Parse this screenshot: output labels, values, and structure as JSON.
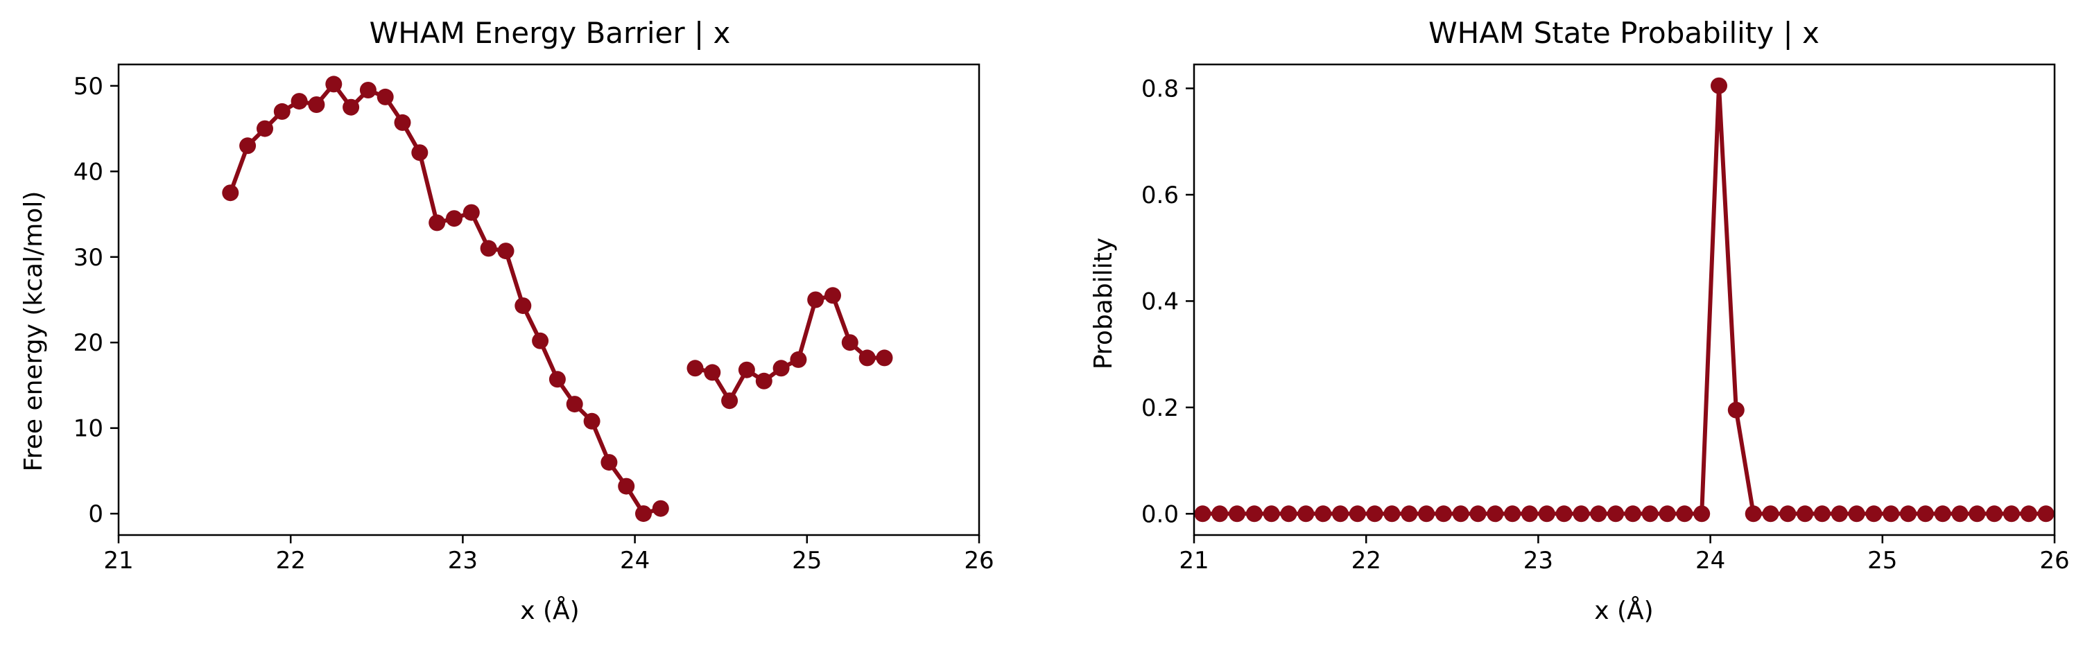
{
  "colors": {
    "series": "#8b0a17"
  },
  "chart_data": [
    {
      "type": "line",
      "title": "WHAM Energy Barrier | x",
      "xlabel": "x (Å)",
      "ylabel": "Free energy (kcal/mol)",
      "xlim": [
        21,
        26
      ],
      "ylim": [
        -2.5,
        52.5
      ],
      "xticks": [
        21,
        22,
        23,
        24,
        25,
        26
      ],
      "yticks": [
        0,
        10,
        20,
        30,
        40,
        50
      ],
      "xtick_labels": [
        "21",
        "22",
        "23",
        "24",
        "25",
        "26"
      ],
      "ytick_labels": [
        "0",
        "10",
        "20",
        "30",
        "40",
        "50"
      ],
      "grid": false,
      "segments": [
        {
          "x": [
            21.65,
            21.75,
            21.85,
            21.95,
            22.05,
            22.15,
            22.25,
            22.35,
            22.45,
            22.55,
            22.65,
            22.75,
            22.85,
            22.95,
            23.05,
            23.15,
            23.25,
            23.35,
            23.45,
            23.55,
            23.65,
            23.75,
            23.85,
            23.95,
            24.05,
            24.15
          ],
          "y": [
            37.5,
            43.0,
            45.0,
            47.0,
            48.2,
            47.8,
            50.2,
            47.5,
            49.5,
            48.7,
            45.7,
            42.2,
            34.0,
            34.5,
            35.2,
            31.0,
            30.7,
            24.3,
            20.2,
            15.7,
            12.8,
            10.8,
            6.0,
            3.2,
            0.0,
            0.6
          ]
        },
        {
          "x": [
            24.35,
            24.45,
            24.55,
            24.65,
            24.75,
            24.85,
            24.95,
            25.05,
            25.15,
            25.25,
            25.35,
            25.45
          ],
          "y": [
            17.0,
            16.5,
            13.2,
            16.8,
            15.5,
            17.0,
            18.0,
            25.0,
            25.5,
            20.0,
            18.2,
            18.2
          ]
        }
      ]
    },
    {
      "type": "line",
      "title": "WHAM State Probability | x",
      "xlabel": "x (Å)",
      "ylabel": "Probability",
      "xlim": [
        21,
        26
      ],
      "ylim": [
        -0.04,
        0.845
      ],
      "xticks": [
        21,
        22,
        23,
        24,
        25,
        26
      ],
      "yticks": [
        0.0,
        0.2,
        0.4,
        0.6,
        0.8
      ],
      "xtick_labels": [
        "21",
        "22",
        "23",
        "24",
        "25",
        "26"
      ],
      "ytick_labels": [
        "0.0",
        "0.2",
        "0.4",
        "0.6",
        "0.8"
      ],
      "grid": false,
      "segments": [
        {
          "x": [
            21.05,
            21.15,
            21.25,
            21.35,
            21.45,
            21.55,
            21.65,
            21.75,
            21.85,
            21.95,
            22.05,
            22.15,
            22.25,
            22.35,
            22.45,
            22.55,
            22.65,
            22.75,
            22.85,
            22.95,
            23.05,
            23.15,
            23.25,
            23.35,
            23.45,
            23.55,
            23.65,
            23.75,
            23.85,
            23.95,
            24.05,
            24.15,
            24.25,
            24.35,
            24.45,
            24.55,
            24.65,
            24.75,
            24.85,
            24.95,
            25.05,
            25.15,
            25.25,
            25.35,
            25.45,
            25.55,
            25.65,
            25.75,
            25.85,
            25.95
          ],
          "y": [
            0,
            0,
            0,
            0,
            0,
            0,
            0,
            0,
            0,
            0,
            0,
            0,
            0,
            0,
            0,
            0,
            0,
            0,
            0,
            0,
            0,
            0,
            0,
            0,
            0,
            0,
            0,
            0,
            0,
            0,
            0.805,
            0.195,
            0,
            0,
            0,
            0,
            0,
            0,
            0,
            0,
            0,
            0,
            0,
            0,
            0,
            0,
            0,
            0,
            0,
            0
          ]
        }
      ]
    }
  ]
}
